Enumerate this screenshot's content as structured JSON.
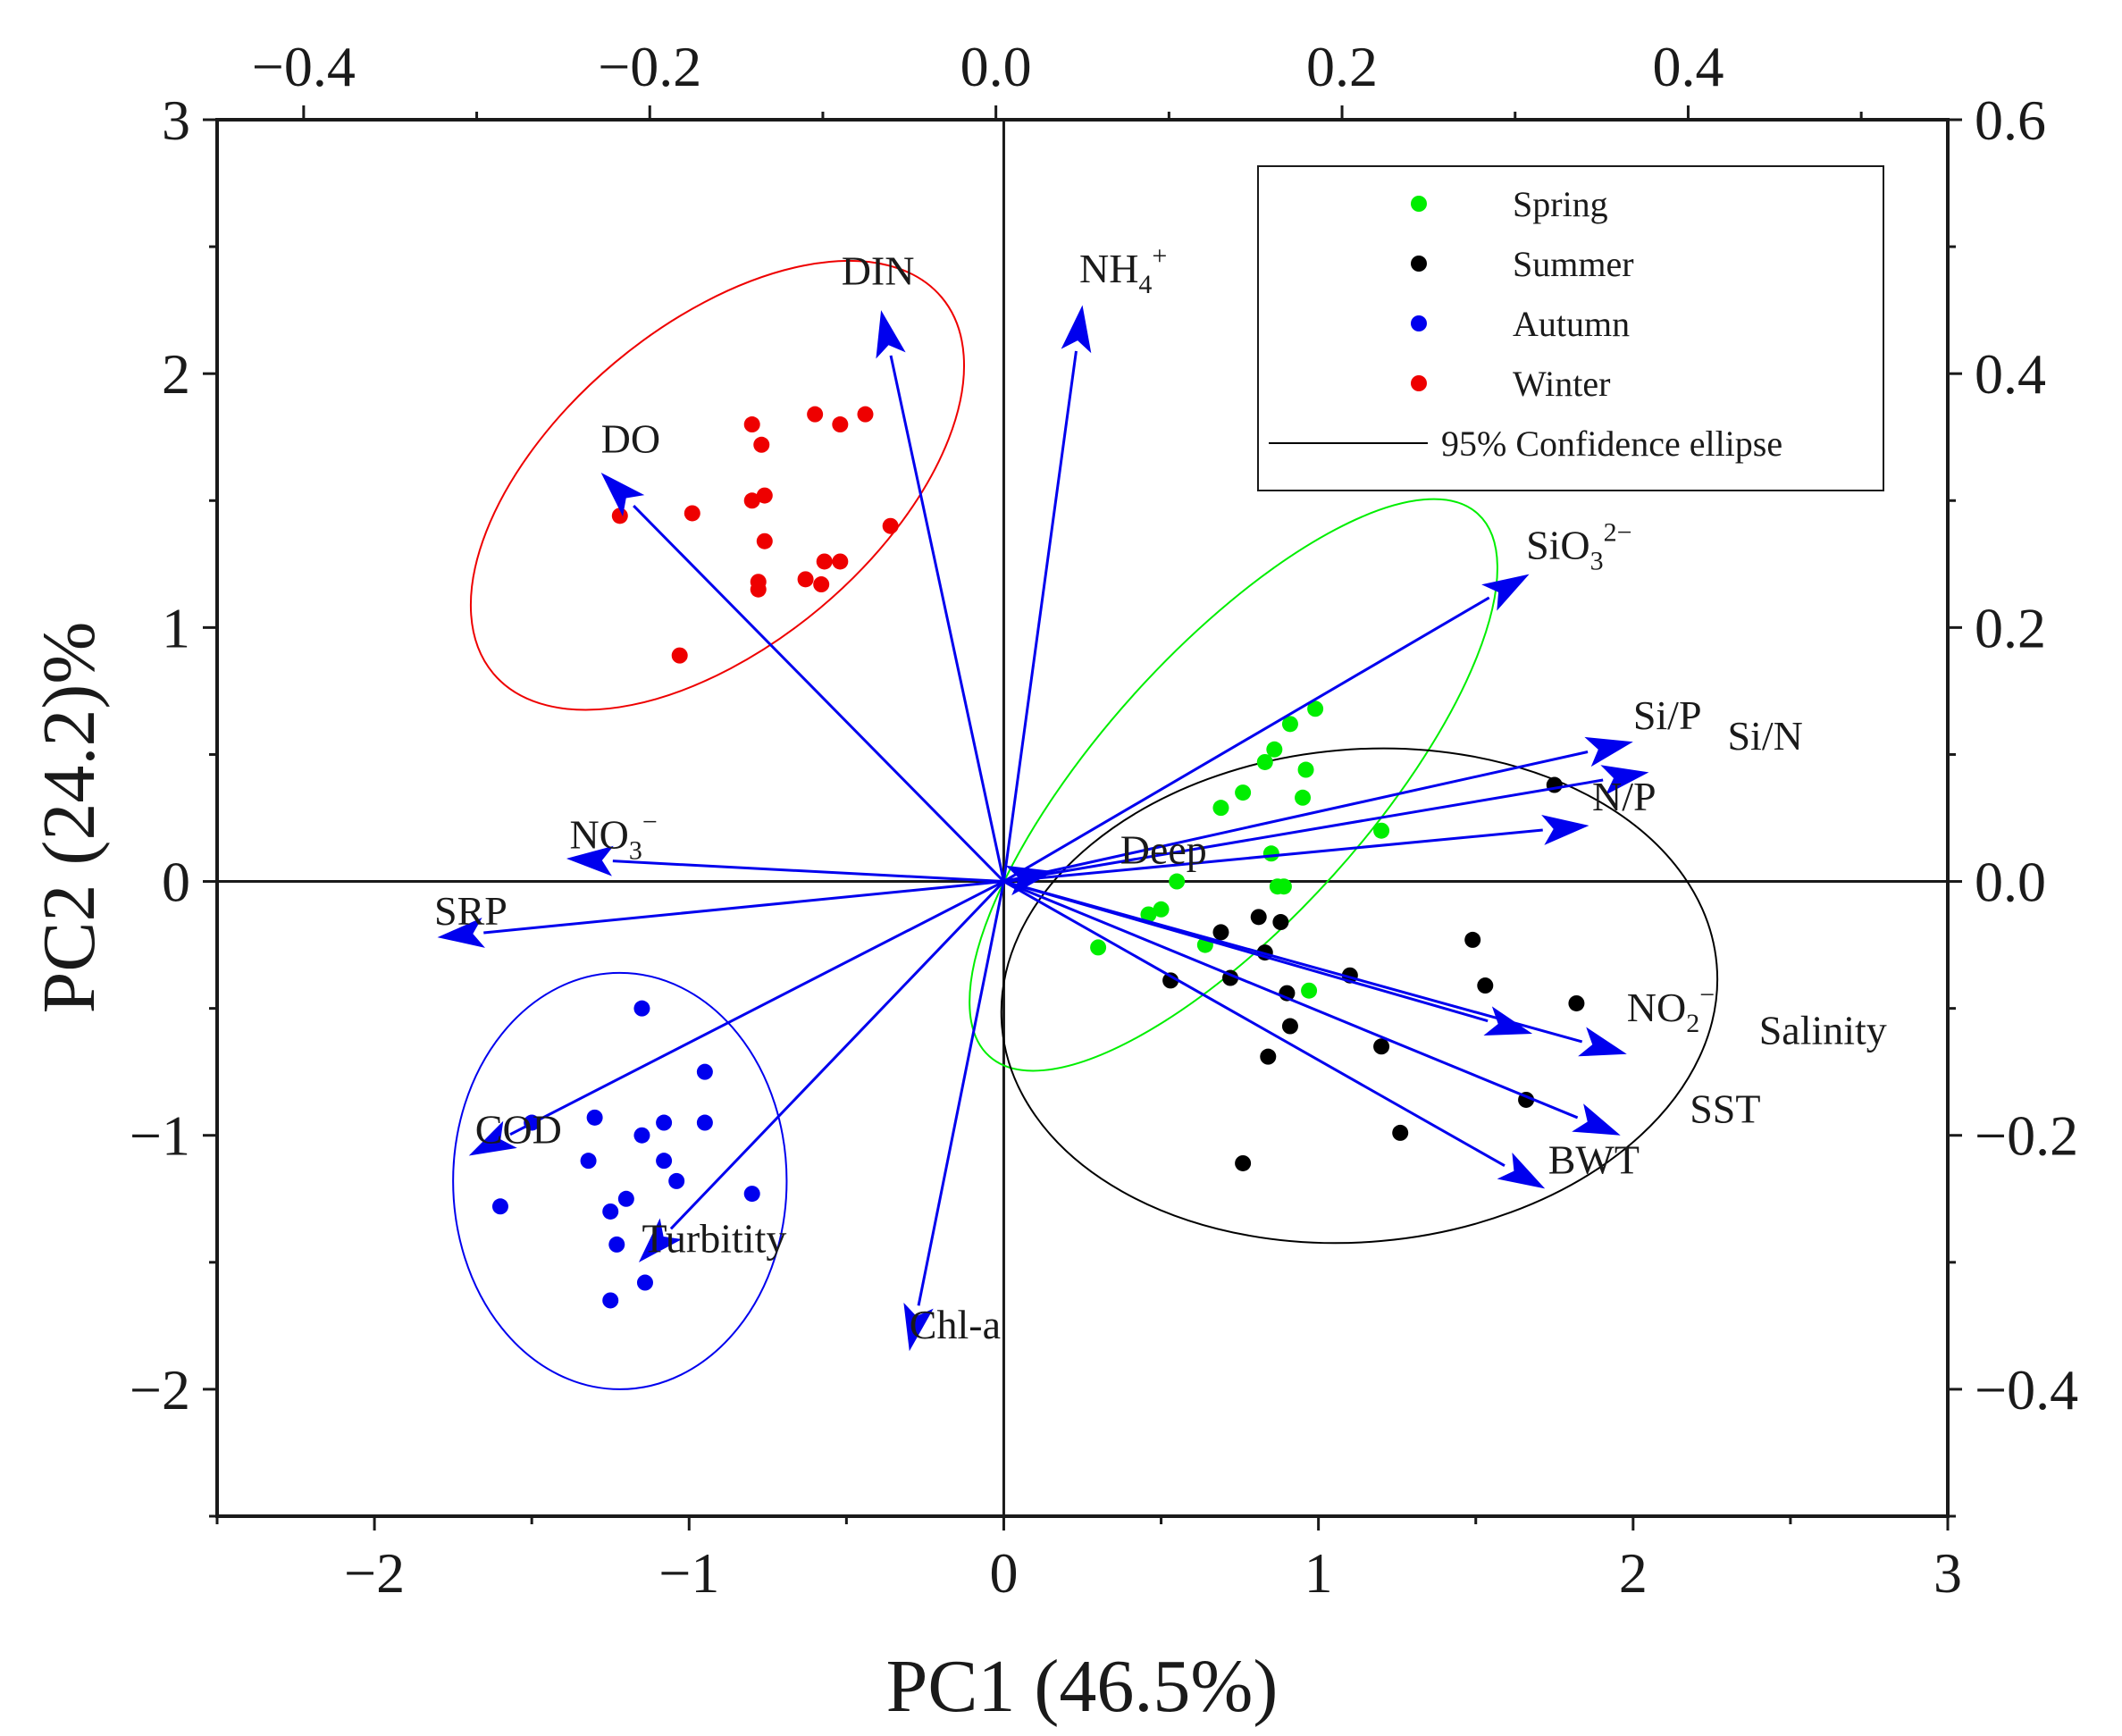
{
  "chart_data": {
    "type": "biplot",
    "xlabel": "PC1 (46.5%)",
    "ylabel": "PC2 (24.2)%",
    "xlim": [
      -2.5,
      3
    ],
    "ylim": [
      -2.5,
      3
    ],
    "xticks": [
      -2,
      -1,
      0,
      1,
      2,
      3
    ],
    "yticks": [
      -2,
      -1,
      0,
      1,
      2,
      3
    ],
    "x_tick_labels": [
      "−2",
      "−1",
      "0",
      "1",
      "2",
      "3"
    ],
    "y_tick_labels": [
      "−2",
      "−1",
      "0",
      "1",
      "2",
      "3"
    ],
    "top_axis": {
      "lim": [
        -0.45,
        0.55
      ],
      "ticks": [
        -0.4,
        -0.2,
        0.0,
        0.2,
        0.4
      ],
      "labels": [
        "−0.4",
        "−0.2",
        "0.0",
        "0.2",
        "0.4"
      ]
    },
    "right_axis": {
      "lim": [
        -0.5,
        0.6
      ],
      "ticks": [
        -0.4,
        -0.2,
        0.0,
        0.2,
        0.4,
        0.6
      ],
      "labels": [
        "−0.4",
        "−0.2",
        "0.0",
        "0.2",
        "0.4",
        "0.6"
      ]
    },
    "series": [
      {
        "name": "Spring",
        "color": "#00ee00",
        "points": [
          [
            0.3,
            -0.26
          ],
          [
            0.46,
            -0.13
          ],
          [
            0.5,
            -0.11
          ],
          [
            0.55,
            0.0
          ],
          [
            0.64,
            -0.25
          ],
          [
            0.69,
            0.29
          ],
          [
            0.76,
            0.35
          ],
          [
            0.83,
            0.47
          ],
          [
            0.86,
            0.52
          ],
          [
            0.91,
            0.62
          ],
          [
            0.99,
            0.68
          ],
          [
            0.96,
            0.44
          ],
          [
            0.95,
            0.33
          ],
          [
            0.85,
            0.11
          ],
          [
            0.87,
            -0.02
          ],
          [
            0.89,
            -0.02
          ],
          [
            0.97,
            -0.43
          ],
          [
            1.2,
            0.2
          ]
        ]
      },
      {
        "name": "Summer",
        "color": "#000000",
        "points": [
          [
            0.53,
            -0.39
          ],
          [
            0.69,
            -0.2
          ],
          [
            0.72,
            -0.38
          ],
          [
            0.81,
            -0.14
          ],
          [
            0.83,
            -0.28
          ],
          [
            0.84,
            -0.69
          ],
          [
            0.88,
            -0.16
          ],
          [
            0.9,
            -0.44
          ],
          [
            0.91,
            -0.57
          ],
          [
            1.1,
            -0.37
          ],
          [
            1.2,
            -0.65
          ],
          [
            1.26,
            -0.99
          ],
          [
            1.49,
            -0.23
          ],
          [
            1.53,
            -0.41
          ],
          [
            1.66,
            -0.86
          ],
          [
            1.82,
            -0.48
          ],
          [
            1.75,
            0.38
          ],
          [
            0.76,
            -1.11
          ]
        ]
      },
      {
        "name": "Autumn",
        "color": "#0000ee",
        "points": [
          [
            -1.15,
            -0.5
          ],
          [
            -0.95,
            -0.75
          ],
          [
            -0.95,
            -0.95
          ],
          [
            -1.08,
            -0.95
          ],
          [
            -1.15,
            -1.0
          ],
          [
            -1.3,
            -0.93
          ],
          [
            -1.5,
            -0.95
          ],
          [
            -1.32,
            -1.1
          ],
          [
            -1.08,
            -1.1
          ],
          [
            -1.04,
            -1.18
          ],
          [
            -0.8,
            -1.23
          ],
          [
            -1.2,
            -1.25
          ],
          [
            -1.25,
            -1.3
          ],
          [
            -1.6,
            -1.28
          ],
          [
            -1.23,
            -1.43
          ],
          [
            -1.14,
            -1.58
          ],
          [
            -1.25,
            -1.65
          ]
        ]
      },
      {
        "name": "Winter",
        "color": "#ee0000",
        "points": [
          [
            -1.22,
            1.44
          ],
          [
            -0.99,
            1.45
          ],
          [
            -0.8,
            1.8
          ],
          [
            -0.77,
            1.72
          ],
          [
            -0.6,
            1.84
          ],
          [
            -0.52,
            1.8
          ],
          [
            -0.44,
            1.84
          ],
          [
            -0.8,
            1.5
          ],
          [
            -0.76,
            1.52
          ],
          [
            -0.76,
            1.34
          ],
          [
            -0.36,
            1.4
          ],
          [
            -0.57,
            1.26
          ],
          [
            -0.52,
            1.26
          ],
          [
            -0.63,
            1.19
          ],
          [
            -0.58,
            1.17
          ],
          [
            -0.78,
            1.18
          ],
          [
            -0.78,
            1.15
          ],
          [
            -1.03,
            0.89
          ]
        ]
      }
    ],
    "ellipses": [
      {
        "name": "Winter",
        "color": "#ee0000",
        "cx": -0.91,
        "cy": 1.56,
        "rx": 0.93,
        "ry": 0.63,
        "angle_deg": 40
      },
      {
        "name": "Spring",
        "color": "#00ee00",
        "cx": 0.73,
        "cy": 0.38,
        "rx": 1.16,
        "ry": 0.53,
        "angle_deg": 48
      },
      {
        "name": "Summer",
        "color": "#000000",
        "cx": 1.13,
        "cy": -0.45,
        "rx": 1.14,
        "ry": 0.97,
        "angle_deg": 5
      },
      {
        "name": "Autumn",
        "color": "#0000ee",
        "cx": -1.22,
        "cy": -1.18,
        "rx": 0.53,
        "ry": 0.82,
        "angle_deg": 0
      }
    ],
    "loadings": [
      {
        "name": "DIN",
        "x": -0.39,
        "y": 2.25
      },
      {
        "name": "NH4+",
        "x": 0.25,
        "y": 2.27
      },
      {
        "name": "DO",
        "x": -1.28,
        "y": 1.61
      },
      {
        "name": "SiO32−",
        "x": 1.67,
        "y": 1.21
      },
      {
        "name": "Si/P",
        "x": 2.0,
        "y": 0.55
      },
      {
        "name": "Si/N",
        "x": 2.05,
        "y": 0.43
      },
      {
        "name": "N/P",
        "x": 1.86,
        "y": 0.22
      },
      {
        "name": "Deep",
        "x": 0.16,
        "y": 0.04
      },
      {
        "name": "NO3−",
        "x": -1.39,
        "y": 0.09
      },
      {
        "name": "SRP",
        "x": -1.8,
        "y": -0.22
      },
      {
        "name": "NO2−",
        "x": 1.68,
        "y": -0.6
      },
      {
        "name": "Salinity",
        "x": 1.98,
        "y": -0.68
      },
      {
        "name": "SST",
        "x": 1.96,
        "y": -1.0
      },
      {
        "name": "BWT",
        "x": 1.72,
        "y": -1.21
      },
      {
        "name": "COD",
        "x": -1.7,
        "y": -1.08
      },
      {
        "name": "Turbitity",
        "x": -1.16,
        "y": -1.5
      },
      {
        "name": "Chl-a",
        "x": -0.3,
        "y": -1.85
      }
    ],
    "loading_labels": [
      {
        "base": "DIN",
        "sub": "",
        "sup": "",
        "x": -0.4,
        "y": 2.35,
        "anchor": "middle"
      },
      {
        "base": "NH",
        "sub": "4",
        "sup": "+",
        "x": 0.24,
        "y": 2.36,
        "anchor": "start"
      },
      {
        "base": "DO",
        "sub": "",
        "sup": "",
        "x": -1.28,
        "y": 1.69,
        "anchor": "start"
      },
      {
        "base": "SiO",
        "sub": "3",
        "sup": "2−",
        "x": 1.66,
        "y": 1.27,
        "anchor": "start"
      },
      {
        "base": "Si/P",
        "sub": "",
        "sup": "",
        "x": 2.0,
        "y": 0.6,
        "anchor": "start"
      },
      {
        "base": "Si/N",
        "sub": "",
        "sup": "",
        "x": 2.3,
        "y": 0.52,
        "anchor": "start"
      },
      {
        "base": "N/P",
        "sub": "",
        "sup": "",
        "x": 1.87,
        "y": 0.28,
        "anchor": "start"
      },
      {
        "base": "Deep",
        "sub": "",
        "sup": "",
        "x": 0.37,
        "y": 0.07,
        "anchor": "start"
      },
      {
        "base": "NO",
        "sub": "3",
        "sup": "−",
        "x": -1.38,
        "y": 0.13,
        "anchor": "start"
      },
      {
        "base": "SRP",
        "sub": "",
        "sup": "",
        "x": -1.81,
        "y": -0.17,
        "anchor": "start"
      },
      {
        "base": "NO",
        "sub": "2",
        "sup": "−",
        "x": 1.98,
        "y": -0.55,
        "anchor": "start"
      },
      {
        "base": "Salinity",
        "sub": "",
        "sup": "",
        "x": 2.4,
        "y": -0.64,
        "anchor": "start"
      },
      {
        "base": "SST",
        "sub": "",
        "sup": "",
        "x": 2.18,
        "y": -0.95,
        "anchor": "start"
      },
      {
        "base": "BWT",
        "sub": "",
        "sup": "",
        "x": 1.73,
        "y": -1.15,
        "anchor": "start"
      },
      {
        "base": "COD",
        "sub": "",
        "sup": "",
        "x": -1.68,
        "y": -1.03,
        "anchor": "start"
      },
      {
        "base": "Turbitity",
        "sub": "",
        "sup": "",
        "x": -1.15,
        "y": -1.46,
        "anchor": "start"
      },
      {
        "base": "Chl-a",
        "sub": "",
        "sup": "",
        "x": -0.3,
        "y": -1.8,
        "anchor": "start"
      }
    ],
    "legend": {
      "position": "top-right",
      "entries": [
        {
          "label": "Spring",
          "color": "#00ee00",
          "kind": "dot"
        },
        {
          "label": "Summer",
          "color": "#000000",
          "kind": "dot"
        },
        {
          "label": "Autumn",
          "color": "#0000ee",
          "kind": "dot"
        },
        {
          "label": "Winter",
          "color": "#ee0000",
          "kind": "dot"
        },
        {
          "label": "95% Confidence ellipse",
          "color": "#000000",
          "kind": "line"
        }
      ]
    },
    "arrow_color": "#0000ee",
    "zero_lines": true,
    "grid": false
  }
}
